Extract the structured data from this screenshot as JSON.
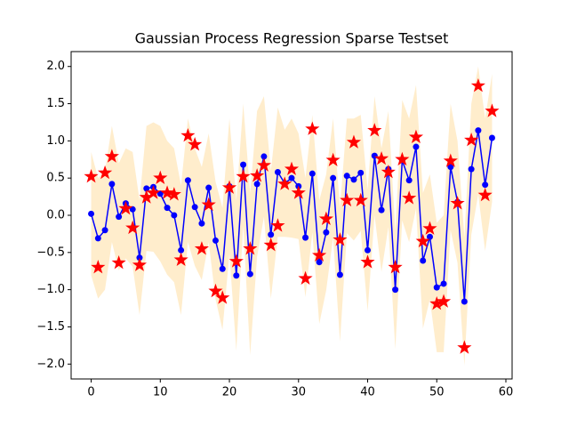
{
  "chart_data": {
    "type": "line",
    "title": "Gaussian Process Regression Sparse Testset",
    "x": [
      0,
      1,
      2,
      3,
      4,
      5,
      6,
      7,
      8,
      9,
      10,
      11,
      12,
      13,
      14,
      15,
      16,
      17,
      18,
      19,
      20,
      21,
      22,
      23,
      24,
      25,
      26,
      27,
      28,
      29,
      30,
      31,
      32,
      33,
      34,
      35,
      36,
      37,
      38,
      39,
      40,
      41,
      42,
      43,
      44,
      45,
      46,
      47,
      48,
      49,
      50,
      51,
      52,
      53,
      54,
      55,
      56,
      57,
      58
    ],
    "series": [
      {
        "color": "#0000ff",
        "marker": "circle",
        "line": true,
        "values": [
          0.02,
          -0.31,
          -0.2,
          0.42,
          -0.02,
          0.16,
          0.08,
          -0.57,
          0.36,
          0.38,
          0.29,
          0.1,
          0.0,
          -0.47,
          0.47,
          0.11,
          -0.11,
          0.37,
          -0.34,
          -0.72,
          0.39,
          -0.81,
          0.68,
          -0.79,
          0.42,
          0.79,
          -0.26,
          0.58,
          0.43,
          0.5,
          0.39,
          -0.3,
          0.56,
          -0.63,
          -0.23,
          0.5,
          -0.8,
          0.53,
          0.48,
          0.57,
          -0.47,
          0.8,
          0.07,
          0.62,
          -1.0,
          0.74,
          0.47,
          0.92,
          -0.61,
          -0.29,
          -0.97,
          -0.92,
          0.65,
          0.18,
          -1.16,
          0.62,
          1.14,
          0.41,
          1.04
        ]
      },
      {
        "color": "#ff0000",
        "marker": "star",
        "line": false,
        "values": [
          0.52,
          -0.7,
          0.57,
          0.79,
          -0.64,
          0.09,
          -0.17,
          -0.67,
          0.24,
          0.3,
          0.5,
          0.3,
          0.28,
          -0.6,
          1.07,
          0.95,
          -0.45,
          0.14,
          -1.02,
          -1.11,
          0.37,
          -0.62,
          0.52,
          -0.45,
          0.53,
          0.67,
          -0.4,
          -0.14,
          0.42,
          0.62,
          0.3,
          -0.85,
          1.16,
          -0.54,
          -0.05,
          0.74,
          -0.33,
          0.2,
          0.98,
          0.2,
          -0.63,
          1.14,
          0.76,
          0.58,
          -0.7,
          0.75,
          0.23,
          1.05,
          -0.35,
          -0.18,
          -1.19,
          -1.16,
          0.73,
          0.16,
          -1.78,
          1.01,
          1.74,
          0.27,
          1.4
        ]
      }
    ],
    "band": {
      "color": "#ffa500",
      "upper": [
        0.85,
        0.5,
        0.6,
        1.2,
        0.7,
        0.9,
        0.85,
        0.2,
        1.2,
        1.25,
        1.2,
        1.0,
        0.9,
        0.4,
        1.3,
        0.9,
        0.65,
        1.1,
        0.45,
        0.1,
        1.3,
        0.2,
        1.5,
        0.3,
        1.4,
        1.6,
        0.6,
        1.45,
        1.15,
        1.3,
        1.1,
        0.5,
        1.35,
        0.2,
        0.55,
        1.3,
        0.1,
        1.3,
        1.3,
        1.35,
        0.35,
        1.6,
        0.9,
        1.4,
        -0.2,
        1.55,
        1.3,
        1.75,
        0.3,
        0.55,
        -0.1,
        0.0,
        1.5,
        1.0,
        -0.3,
        1.5,
        2.0,
        1.3,
        1.9
      ],
      "lower": [
        -0.81,
        -1.12,
        -1.0,
        -0.36,
        -0.74,
        -0.58,
        -0.69,
        -1.34,
        -0.48,
        -0.49,
        -0.62,
        -0.8,
        -0.9,
        -1.34,
        -0.36,
        -0.68,
        -0.87,
        -0.36,
        -1.13,
        -1.54,
        -0.52,
        -1.82,
        -0.14,
        -1.88,
        -0.56,
        -0.02,
        -1.12,
        -0.29,
        -0.29,
        -0.3,
        -0.32,
        -1.1,
        -0.23,
        -1.46,
        -1.01,
        -0.3,
        -1.7,
        -0.24,
        -0.34,
        -0.21,
        -1.29,
        0.0,
        -0.76,
        -0.16,
        -1.8,
        -0.07,
        -0.36,
        0.09,
        -1.52,
        -1.13,
        -1.84,
        -1.84,
        -0.2,
        -0.64,
        -2.02,
        -0.26,
        0.28,
        -0.48,
        0.18
      ]
    },
    "xlim": [
      -2.9,
      60.9
    ],
    "ylim": [
      -2.2,
      2.2
    ],
    "xticks": [
      0,
      10,
      20,
      30,
      40,
      50,
      60
    ],
    "yticks": [
      {
        "value": -2.0,
        "label": "−2.0"
      },
      {
        "value": -1.5,
        "label": "−1.5"
      },
      {
        "value": -1.0,
        "label": "−1.0"
      },
      {
        "value": -0.5,
        "label": "−0.5"
      },
      {
        "value": 0.0,
        "label": "0.0"
      },
      {
        "value": 0.5,
        "label": "0.5"
      },
      {
        "value": 1.0,
        "label": "1.0"
      },
      {
        "value": 1.5,
        "label": "1.5"
      },
      {
        "value": 2.0,
        "label": "2.0"
      }
    ],
    "grid": false
  }
}
